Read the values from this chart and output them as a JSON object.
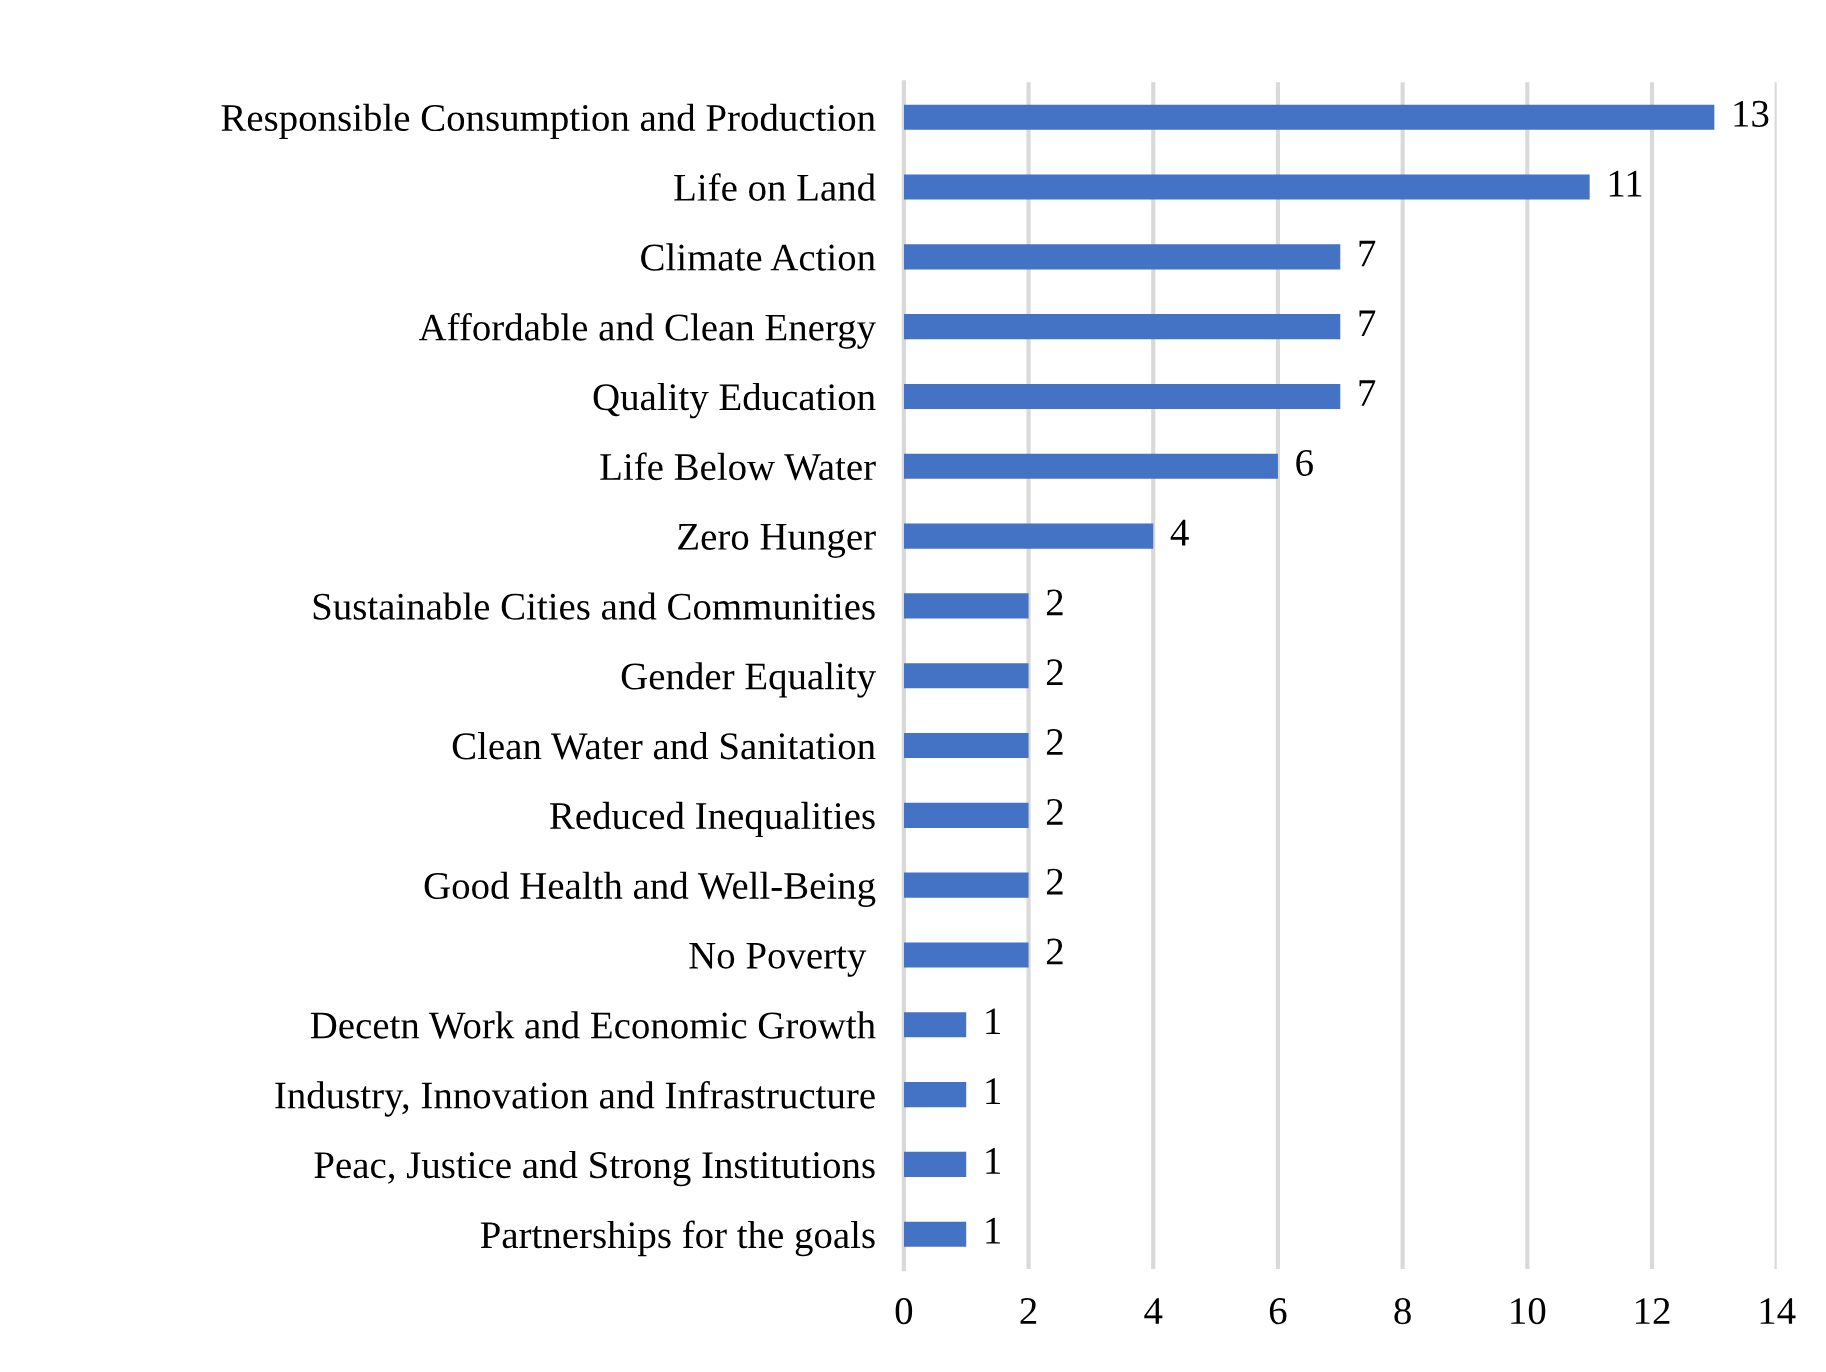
{
  "chart_data": {
    "type": "bar",
    "orientation": "horizontal",
    "categories": [
      "Responsible Consumption and Production",
      "Life on Land",
      "Climate Action",
      "Affordable and Clean Energy",
      "Quality Education",
      "Life Below Water",
      "Zero Hunger",
      "Sustainable Cities and Communities",
      "Gender Equality",
      "Clean Water and Sanitation",
      "Reduced Inequalities",
      "Good Health and Well-Being",
      "No Poverty ",
      "Decetn Work and Economic Growth",
      "Industry, Innovation and Infrastructure",
      "Peac, Justice and Strong Institutions",
      "Partnerships for the goals"
    ],
    "values": [
      13,
      11,
      7,
      7,
      7,
      6,
      4,
      2,
      2,
      2,
      2,
      2,
      2,
      1,
      1,
      1,
      1
    ],
    "color": "#4472c4",
    "xlim": [
      0,
      14
    ],
    "xticks": [
      0,
      2,
      4,
      6,
      8,
      10,
      12,
      14
    ],
    "grid": "x",
    "data_labels": true
  }
}
